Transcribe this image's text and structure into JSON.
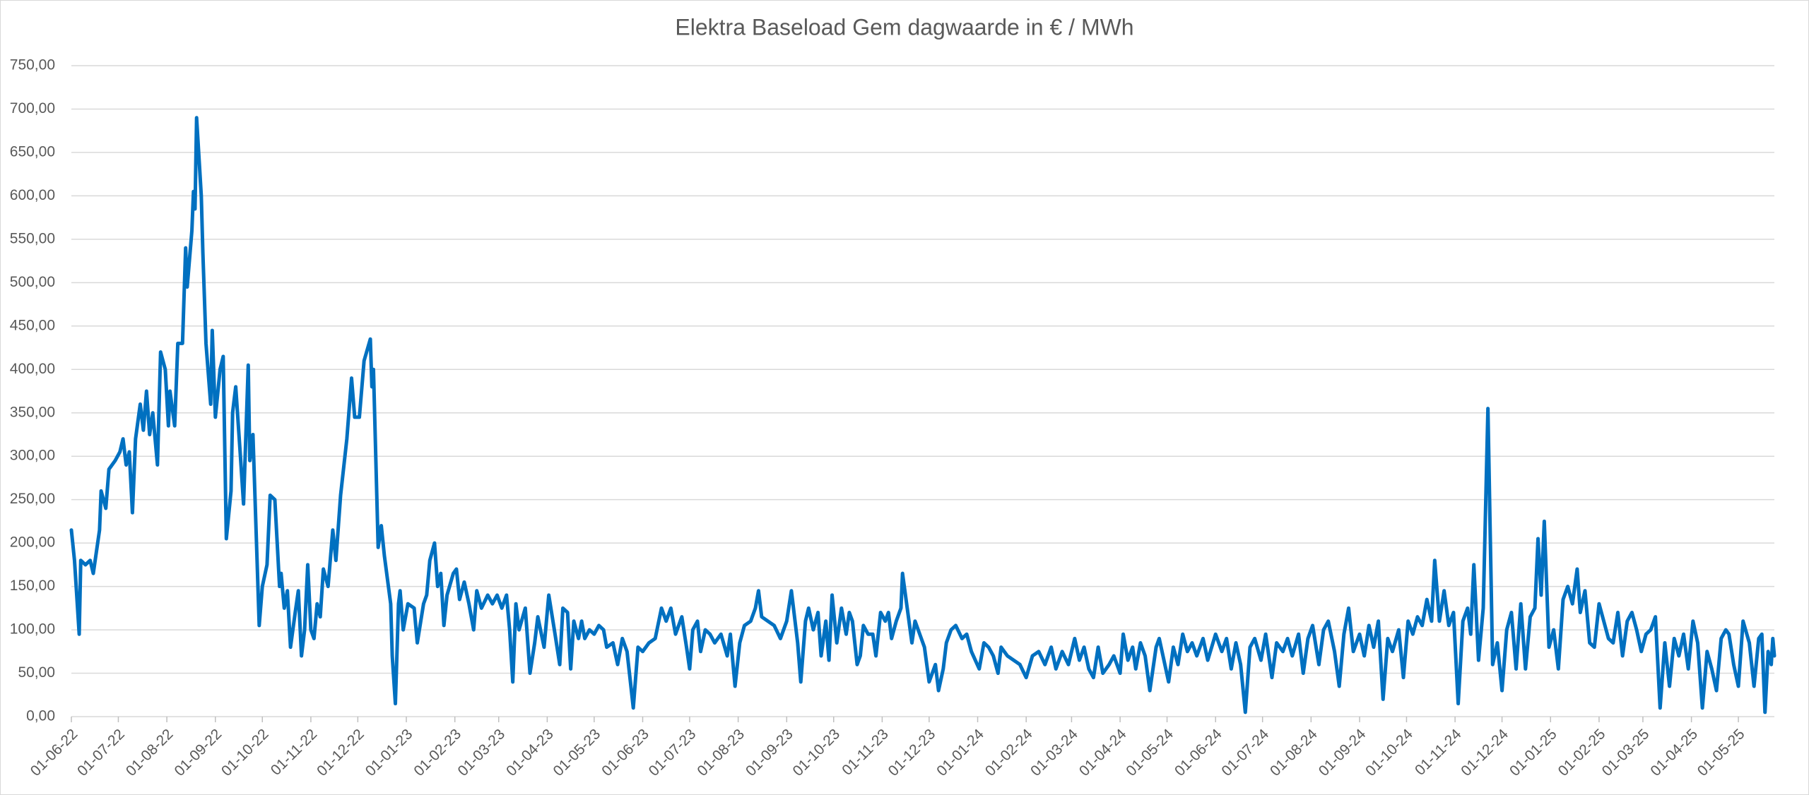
{
  "chart_data": {
    "type": "line",
    "title": "Elektra Baseload Gem dagwaarde in € / MWh",
    "x": [
      "01-06-22",
      "03-06-22",
      "06-06-22",
      "07-06-22",
      "10-06-22",
      "13-06-22",
      "15-06-22",
      "19-06-22",
      "20-06-22",
      "23-06-22",
      "25-06-22",
      "29-06-22",
      "02-07-22",
      "04-07-22",
      "06-07-22",
      "08-07-22",
      "10-07-22",
      "12-07-22",
      "15-07-22",
      "17-07-22",
      "19-07-22",
      "21-07-22",
      "23-07-22",
      "26-07-22",
      "28-07-22",
      "31-07-22",
      "02-08-22",
      "03-08-22",
      "06-08-22",
      "08-08-22",
      "11-08-22",
      "13-08-22",
      "14-08-22",
      "17-08-22",
      "18-08-22",
      "19-08-22",
      "20-08-22",
      "23-08-22",
      "24-08-22",
      "26-08-22",
      "29-08-22",
      "30-08-22",
      "01-09-22",
      "04-09-22",
      "06-09-22",
      "08-09-22",
      "11-09-22",
      "12-09-22",
      "14-09-22",
      "17-09-22",
      "19-09-22",
      "22-09-22",
      "23-09-22",
      "25-09-22",
      "29-09-22",
      "01-10-22",
      "04-10-22",
      "06-10-22",
      "09-10-22",
      "12-10-22",
      "13-10-22",
      "15-10-22",
      "17-10-22",
      "19-10-22",
      "22-10-22",
      "24-10-22",
      "26-10-22",
      "28-10-22",
      "30-10-22",
      "01-11-22",
      "03-11-22",
      "05-11-22",
      "07-11-22",
      "09-11-22",
      "12-11-22",
      "15-11-22",
      "17-11-22",
      "20-11-22",
      "24-11-22",
      "27-11-22",
      "29-11-22",
      "02-12-22",
      "05-12-22",
      "09-12-22",
      "10-12-22",
      "11-12-22",
      "14-12-22",
      "16-12-22",
      "18-12-22",
      "22-12-22",
      "23-12-22",
      "25-12-22",
      "27-12-22",
      "28-12-22",
      "30-12-22",
      "02-01-23",
      "06-01-23",
      "08-01-23",
      "12-01-23",
      "14-01-23",
      "16-01-23",
      "19-01-23",
      "21-01-23",
      "23-01-23",
      "25-01-23",
      "27-01-23",
      "31-01-23",
      "02-02-23",
      "04-02-23",
      "07-02-23",
      "10-02-23",
      "13-02-23",
      "15-02-23",
      "18-02-23",
      "22-02-23",
      "25-02-23",
      "28-02-23",
      "03-03-23",
      "06-03-23",
      "08-03-23",
      "10-03-23",
      "12-03-23",
      "14-03-23",
      "18-03-23",
      "21-03-23",
      "24-03-23",
      "26-03-23",
      "30-03-23",
      "02-04-23",
      "06-04-23",
      "09-04-23",
      "11-04-23",
      "14-04-23",
      "16-04-23",
      "18-04-23",
      "21-04-23",
      "23-04-23",
      "25-04-23",
      "28-04-23",
      "01-05-23",
      "04-05-23",
      "07-05-23",
      "09-05-23",
      "13-05-23",
      "16-05-23",
      "19-05-23",
      "22-05-23",
      "26-05-23",
      "29-05-23",
      "01-06-23",
      "05-06-23",
      "09-06-23",
      "13-06-23",
      "16-06-23",
      "19-06-23",
      "22-06-23",
      "26-06-23",
      "29-06-23",
      "01-07-23",
      "03-07-23",
      "06-07-23",
      "08-07-23",
      "11-07-23",
      "14-07-23",
      "17-07-23",
      "21-07-23",
      "25-07-23",
      "27-07-23",
      "30-07-23",
      "02-08-23",
      "05-08-23",
      "09-08-23",
      "12-08-23",
      "14-08-23",
      "16-08-23",
      "20-08-23",
      "24-08-23",
      "28-08-23",
      "01-09-23",
      "04-09-23",
      "06-09-23",
      "08-09-23",
      "10-09-23",
      "13-09-23",
      "15-09-23",
      "18-09-23",
      "21-09-23",
      "23-09-23",
      "26-09-23",
      "28-09-23",
      "30-09-23",
      "03-10-23",
      "06-10-23",
      "09-10-23",
      "11-10-23",
      "13-10-23",
      "16-10-23",
      "18-10-23",
      "20-10-23",
      "23-10-23",
      "26-10-23",
      "28-10-23",
      "31-10-23",
      "03-11-23",
      "05-11-23",
      "07-11-23",
      "10-11-23",
      "13-11-23",
      "14-11-23",
      "17-11-23",
      "20-11-23",
      "22-11-23",
      "25-11-23",
      "28-11-23",
      "01-12-23",
      "05-12-23",
      "07-12-23",
      "10-12-23",
      "12-12-23",
      "15-12-23",
      "18-12-23",
      "22-12-23",
      "25-12-23",
      "28-12-23",
      "02-01-24",
      "05-01-24",
      "08-01-24",
      "11-01-24",
      "14-01-24",
      "16-01-24",
      "20-01-24",
      "24-01-24",
      "28-01-24",
      "01-02-24",
      "05-02-24",
      "09-02-24",
      "13-02-24",
      "17-02-24",
      "20-02-24",
      "24-02-24",
      "28-02-24",
      "03-03-24",
      "06-03-24",
      "09-03-24",
      "12-03-24",
      "15-03-24",
      "18-03-24",
      "21-03-24",
      "25-03-24",
      "28-03-24",
      "01-04-24",
      "03-04-24",
      "06-04-24",
      "09-04-24",
      "11-04-24",
      "14-04-24",
      "17-04-24",
      "20-04-24",
      "24-04-24",
      "26-04-24",
      "29-04-24",
      "02-05-24",
      "05-05-24",
      "08-05-24",
      "11-05-24",
      "14-05-24",
      "17-05-24",
      "20-05-24",
      "24-05-24",
      "27-05-24",
      "01-06-24",
      "05-06-24",
      "08-06-24",
      "11-06-24",
      "14-06-24",
      "17-06-24",
      "20-06-24",
      "23-06-24",
      "26-06-24",
      "30-06-24",
      "03-07-24",
      "07-07-24",
      "10-07-24",
      "14-07-24",
      "17-07-24",
      "20-07-24",
      "24-07-24",
      "27-07-24",
      "30-07-24",
      "02-08-24",
      "06-08-24",
      "09-08-24",
      "12-08-24",
      "16-08-24",
      "19-08-24",
      "22-08-24",
      "25-08-24",
      "28-08-24",
      "01-09-24",
      "04-09-24",
      "07-09-24",
      "10-09-24",
      "13-09-24",
      "16-09-24",
      "19-09-24",
      "22-09-24",
      "26-09-24",
      "29-09-24",
      "02-10-24",
      "05-10-24",
      "08-10-24",
      "11-10-24",
      "14-10-24",
      "17-10-24",
      "19-10-24",
      "22-10-24",
      "25-10-24",
      "28-10-24",
      "31-10-24",
      "03-11-24",
      "06-11-24",
      "09-11-24",
      "11-11-24",
      "13-11-24",
      "16-11-24",
      "19-11-24",
      "22-11-24",
      "25-11-24",
      "28-11-24",
      "01-12-24",
      "04-12-24",
      "07-12-24",
      "10-12-24",
      "13-12-24",
      "16-12-24",
      "19-12-24",
      "22-12-24",
      "24-12-24",
      "26-12-24",
      "28-12-24",
      "31-12-24",
      "03-01-25",
      "06-01-25",
      "09-01-25",
      "12-01-25",
      "15-01-25",
      "18-01-25",
      "20-01-25",
      "23-01-25",
      "26-01-25",
      "29-01-25",
      "01-02-25",
      "04-02-25",
      "07-02-25",
      "10-02-25",
      "13-02-25",
      "16-02-25",
      "19-02-25",
      "22-02-25",
      "25-02-25",
      "28-02-25",
      "03-03-25",
      "06-03-25",
      "09-03-25",
      "12-03-25",
      "15-03-25",
      "18-03-25",
      "21-03-25",
      "24-03-25",
      "27-03-25",
      "30-03-25",
      "02-04-25",
      "05-04-25",
      "08-04-25",
      "11-04-25",
      "14-04-25",
      "17-04-25",
      "20-04-25",
      "23-04-25",
      "25-04-25",
      "28-04-25",
      "01-05-25",
      "04-05-25",
      "08-05-25",
      "11-05-25",
      "14-05-25",
      "16-05-25",
      "18-05-25",
      "20-05-25",
      "22-05-25",
      "23-05-25",
      "24-05-25"
    ],
    "series": [
      {
        "color": "#0070c0",
        "values": [
          215,
          180,
          95,
          180,
          175,
          180,
          165,
          215,
          260,
          240,
          285,
          295,
          305,
          320,
          290,
          305,
          235,
          320,
          360,
          330,
          375,
          325,
          350,
          290,
          420,
          400,
          335,
          375,
          335,
          430,
          430,
          540,
          495,
          560,
          605,
          585,
          690,
          600,
          535,
          430,
          360,
          445,
          345,
          400,
          415,
          205,
          260,
          350,
          380,
          300,
          245,
          405,
          295,
          325,
          105,
          150,
          175,
          255,
          250,
          150,
          165,
          125,
          145,
          80,
          120,
          145,
          70,
          100,
          175,
          100,
          90,
          130,
          115,
          170,
          150,
          215,
          180,
          255,
          320,
          390,
          345,
          345,
          410,
          435,
          380,
          400,
          195,
          220,
          185,
          130,
          70,
          15,
          130,
          145,
          100,
          130,
          125,
          85,
          130,
          140,
          180,
          200,
          150,
          165,
          105,
          140,
          165,
          170,
          135,
          155,
          130,
          100,
          145,
          125,
          140,
          130,
          140,
          125,
          140,
          100,
          40,
          130,
          100,
          125,
          50,
          85,
          115,
          80,
          140,
          95,
          60,
          125,
          120,
          55,
          110,
          90,
          110,
          90,
          100,
          95,
          105,
          100,
          80,
          85,
          60,
          90,
          75,
          10,
          80,
          75,
          85,
          90,
          125,
          110,
          125,
          95,
          115,
          80,
          55,
          100,
          110,
          75,
          100,
          95,
          85,
          95,
          70,
          95,
          35,
          85,
          105,
          110,
          125,
          145,
          115,
          110,
          105,
          90,
          110,
          145,
          115,
          85,
          40,
          110,
          125,
          100,
          120,
          70,
          110,
          65,
          140,
          85,
          125,
          95,
          120,
          110,
          60,
          70,
          105,
          95,
          95,
          70,
          120,
          110,
          120,
          90,
          110,
          125,
          165,
          125,
          85,
          110,
          95,
          80,
          40,
          60,
          30,
          55,
          85,
          100,
          105,
          90,
          95,
          75,
          55,
          85,
          80,
          70,
          50,
          80,
          70,
          65,
          60,
          45,
          70,
          75,
          60,
          80,
          55,
          75,
          60,
          90,
          65,
          80,
          55,
          45,
          80,
          50,
          60,
          70,
          50,
          95,
          65,
          80,
          55,
          85,
          70,
          30,
          80,
          90,
          65,
          40,
          80,
          60,
          95,
          75,
          85,
          70,
          90,
          65,
          95,
          75,
          90,
          55,
          85,
          60,
          5,
          80,
          90,
          65,
          95,
          45,
          85,
          75,
          90,
          70,
          95,
          50,
          90,
          105,
          60,
          100,
          110,
          75,
          35,
          95,
          125,
          75,
          95,
          70,
          105,
          80,
          110,
          20,
          90,
          75,
          100,
          45,
          110,
          95,
          115,
          105,
          135,
          110,
          180,
          110,
          145,
          105,
          120,
          15,
          110,
          125,
          95,
          175,
          65,
          125,
          355,
          60,
          85,
          30,
          100,
          120,
          55,
          130,
          55,
          115,
          125,
          205,
          140,
          225,
          80,
          100,
          55,
          135,
          150,
          130,
          170,
          120,
          145,
          85,
          80,
          130,
          110,
          90,
          85,
          120,
          70,
          110,
          120,
          100,
          75,
          95,
          100,
          115,
          10,
          85,
          35,
          90,
          70,
          95,
          55,
          110,
          85,
          10,
          75,
          55,
          30,
          90,
          100,
          95,
          60,
          35,
          110,
          85,
          35,
          90,
          95,
          5,
          75,
          60,
          90,
          70
        ]
      }
    ],
    "xlim": [
      "01-06-22",
      "24-05-25"
    ],
    "xticks": [
      "01-06-22",
      "01-07-22",
      "01-08-22",
      "01-09-22",
      "01-10-22",
      "01-11-22",
      "01-12-22",
      "01-01-23",
      "01-02-23",
      "01-03-23",
      "01-04-23",
      "01-05-23",
      "01-06-23",
      "01-07-23",
      "01-08-23",
      "01-09-23",
      "01-10-23",
      "01-11-23",
      "01-12-23",
      "01-01-24",
      "01-02-24",
      "01-03-24",
      "01-04-24",
      "01-05-24",
      "01-06-24",
      "01-07-24",
      "01-08-24",
      "01-09-24",
      "01-10-24",
      "01-11-24",
      "01-12-24",
      "01-01-25",
      "01-02-25",
      "01-03-25",
      "01-04-25",
      "01-05-25"
    ],
    "ylim": [
      0,
      750
    ],
    "yticks": [
      {
        "value": 0,
        "label": "0,00"
      },
      {
        "value": 50,
        "label": "50,00"
      },
      {
        "value": 100,
        "label": "100,00"
      },
      {
        "value": 150,
        "label": "150,00"
      },
      {
        "value": 200,
        "label": "200,00"
      },
      {
        "value": 250,
        "label": "250,00"
      },
      {
        "value": 300,
        "label": "300,00"
      },
      {
        "value": 350,
        "label": "350,00"
      },
      {
        "value": 400,
        "label": "400,00"
      },
      {
        "value": 450,
        "label": "450,00"
      },
      {
        "value": 500,
        "label": "500,00"
      },
      {
        "value": 550,
        "label": "550,00"
      },
      {
        "value": 600,
        "label": "600,00"
      },
      {
        "value": 650,
        "label": "650,00"
      },
      {
        "value": 700,
        "label": "700,00"
      },
      {
        "value": 750,
        "label": "750,00"
      }
    ],
    "grid": true
  }
}
